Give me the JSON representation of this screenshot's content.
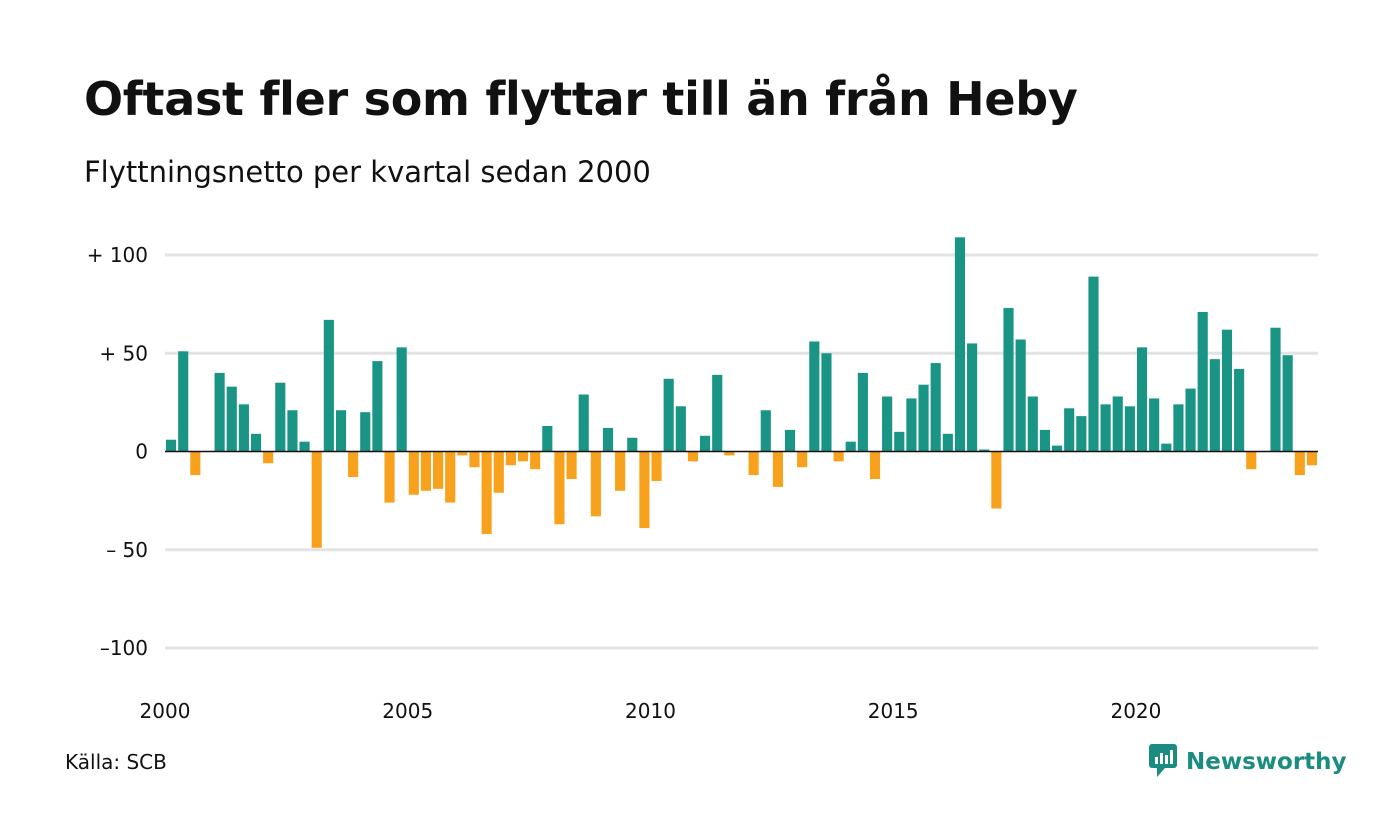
{
  "title": "Oftast fler som flyttar till än från Heby",
  "subtitle": "Flyttningsnetto per kvartal sedan 2000",
  "source": "Källa: SCB",
  "brand": {
    "name": "Newsworthy",
    "icon": "newsworthy-logo-icon"
  },
  "colors": {
    "positive": "#1a9585",
    "negative": "#f8a11c",
    "grid": "#e3e3e3",
    "axis": "#111111"
  },
  "chart_data": {
    "type": "bar",
    "title": "Oftast fler som flyttar till än från Heby",
    "subtitle": "Flyttningsnetto per kvartal sedan 2000",
    "xlabel": "",
    "ylabel": "",
    "ylim": [
      -100,
      100
    ],
    "xlim": [
      2000,
      2023.75
    ],
    "y_ticks": [
      {
        "value": 100,
        "label": "+ 100"
      },
      {
        "value": 50,
        "label": "+  50"
      },
      {
        "value": 0,
        "label": "0"
      },
      {
        "value": -50,
        "label": "– 50"
      },
      {
        "value": -100,
        "label": "–100"
      }
    ],
    "x_ticks": [
      {
        "value": 2000,
        "label": "2000"
      },
      {
        "value": 2005,
        "label": "2005"
      },
      {
        "value": 2010,
        "label": "2010"
      },
      {
        "value": 2015,
        "label": "2015"
      },
      {
        "value": 2020,
        "label": "2020"
      }
    ],
    "grid": true,
    "legend": "none",
    "start_period": "2000 Q1",
    "categories": [
      "2000 Q1",
      "2000 Q2",
      "2000 Q3",
      "2000 Q4",
      "2001 Q1",
      "2001 Q2",
      "2001 Q3",
      "2001 Q4",
      "2002 Q1",
      "2002 Q2",
      "2002 Q3",
      "2002 Q4",
      "2003 Q1",
      "2003 Q2",
      "2003 Q3",
      "2003 Q4",
      "2004 Q1",
      "2004 Q2",
      "2004 Q3",
      "2004 Q4",
      "2005 Q1",
      "2005 Q2",
      "2005 Q3",
      "2005 Q4",
      "2006 Q1",
      "2006 Q2",
      "2006 Q3",
      "2006 Q4",
      "2007 Q1",
      "2007 Q2",
      "2007 Q3",
      "2007 Q4",
      "2008 Q1",
      "2008 Q2",
      "2008 Q3",
      "2008 Q4",
      "2009 Q1",
      "2009 Q2",
      "2009 Q3",
      "2009 Q4",
      "2010 Q1",
      "2010 Q2",
      "2010 Q3",
      "2010 Q4",
      "2011 Q1",
      "2011 Q2",
      "2011 Q3",
      "2011 Q4",
      "2012 Q1",
      "2012 Q2",
      "2012 Q3",
      "2012 Q4",
      "2013 Q1",
      "2013 Q2",
      "2013 Q3",
      "2013 Q4",
      "2014 Q1",
      "2014 Q2",
      "2014 Q3",
      "2014 Q4",
      "2015 Q1",
      "2015 Q2",
      "2015 Q3",
      "2015 Q4",
      "2016 Q1",
      "2016 Q2",
      "2016 Q3",
      "2016 Q4",
      "2017 Q1",
      "2017 Q2",
      "2017 Q3",
      "2017 Q4",
      "2018 Q1",
      "2018 Q2",
      "2018 Q3",
      "2018 Q4",
      "2019 Q1",
      "2019 Q2",
      "2019 Q3",
      "2019 Q4",
      "2020 Q1",
      "2020 Q2",
      "2020 Q3",
      "2020 Q4",
      "2021 Q1",
      "2021 Q2",
      "2021 Q3",
      "2021 Q4",
      "2022 Q1",
      "2022 Q2",
      "2022 Q3",
      "2022 Q4",
      "2023 Q1",
      "2023 Q2",
      "2023 Q3",
      "2023 Q4"
    ],
    "values": [
      6,
      51,
      -12,
      0,
      40,
      33,
      24,
      9,
      -6,
      35,
      21,
      5,
      -49,
      67,
      21,
      -13,
      20,
      46,
      -26,
      53,
      -22,
      -20,
      -19,
      -26,
      -2,
      -8,
      -42,
      -21,
      -7,
      -5,
      -9,
      13,
      -37,
      -14,
      29,
      -33,
      12,
      -20,
      7,
      -39,
      -15,
      37,
      23,
      -5,
      8,
      39,
      -2,
      0,
      -12,
      21,
      -18,
      11,
      -8,
      56,
      50,
      -5,
      5,
      40,
      -14,
      28,
      10,
      27,
      34,
      45,
      9,
      109,
      55,
      1,
      -29,
      73,
      57,
      28,
      11,
      3,
      22,
      18,
      89,
      24,
      28,
      23,
      53,
      27,
      4,
      24,
      32,
      71,
      47,
      62,
      42,
      -9,
      0,
      63,
      49,
      -12,
      -7,
      0
    ]
  }
}
